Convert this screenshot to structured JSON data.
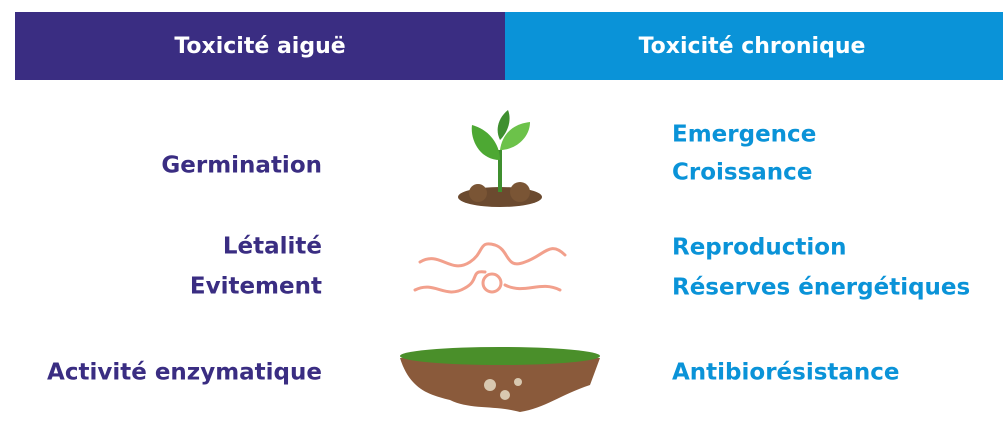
{
  "header": {
    "acute": "Toxicité aiguë",
    "chronic": "Toxicité chronique"
  },
  "rows": [
    {
      "acute": [
        "Germination"
      ],
      "chronic": [
        "Emergence",
        "Croissance"
      ]
    },
    {
      "acute": [
        "Létalité",
        "Evitement"
      ],
      "chronic": [
        "Reproduction",
        "Réserves énergétiques"
      ]
    },
    {
      "acute": [
        "Activité enzymatique"
      ],
      "chronic": [
        "Antibiorésistance"
      ]
    }
  ]
}
